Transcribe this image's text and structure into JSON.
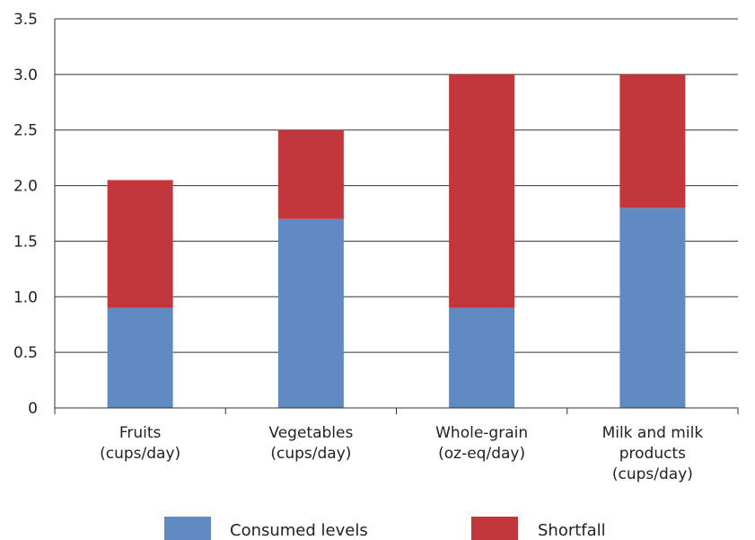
{
  "chart_data": {
    "type": "bar",
    "stacked": true,
    "categories": [
      [
        "Fruits",
        "(cups/day)"
      ],
      [
        "Vegetables",
        "(cups/day)"
      ],
      [
        "Whole-grain",
        "(oz-eq/day)"
      ],
      [
        "Milk and milk",
        "products",
        "(cups/day)"
      ]
    ],
    "series": [
      {
        "name": "Consumed levels",
        "values": [
          0.9,
          1.7,
          0.9,
          1.8
        ],
        "color": "#6189c2"
      },
      {
        "name": "Shortfall",
        "values": [
          1.15,
          0.8,
          2.1,
          1.2
        ],
        "color": "#c2373c"
      }
    ],
    "title": "",
    "xlabel": "",
    "ylabel": "",
    "ylim": [
      0,
      3.5
    ],
    "yticks": [
      "0",
      "0.5",
      "1.0",
      "1.5",
      "2.0",
      "2.5",
      "3.0",
      "3.5"
    ],
    "grid": true,
    "legend": "bottom"
  }
}
